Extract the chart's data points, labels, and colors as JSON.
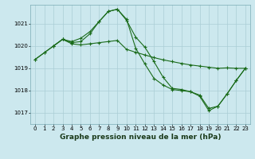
{
  "title": "Graphe pression niveau de la mer (hPa)",
  "title_fontsize": 6.5,
  "title_fontweight": "bold",
  "ylabel_ticks": [
    1017,
    1018,
    1019,
    1020,
    1021
  ],
  "xlim": [
    -0.5,
    23.5
  ],
  "ylim": [
    1016.5,
    1021.85
  ],
  "bg_color": "#cce8ee",
  "grid_color": "#aacdd5",
  "line_color": "#1a6b1a",
  "tick_fontsize": 5.0,
  "line1_x": [
    0,
    1,
    2,
    3,
    4,
    5,
    6,
    7,
    8,
    9,
    10,
    11,
    12,
    13,
    14,
    15,
    16,
    17,
    18,
    19,
    20,
    21,
    22,
    23
  ],
  "line1_y": [
    1019.4,
    1019.7,
    1020.0,
    1020.3,
    1020.1,
    1020.05,
    1020.1,
    1020.15,
    1020.2,
    1020.25,
    1019.85,
    1019.72,
    1019.6,
    1019.48,
    1019.38,
    1019.3,
    1019.22,
    1019.15,
    1019.1,
    1019.05,
    1019.0,
    1019.02,
    1019.0,
    1019.0
  ],
  "line2_x": [
    0,
    1,
    2,
    3,
    4,
    5,
    6,
    7,
    8,
    9,
    10,
    11,
    12,
    13,
    14,
    15,
    16,
    17,
    18,
    19,
    20,
    21,
    22,
    23
  ],
  "line2_y": [
    1019.4,
    1019.7,
    1020.0,
    1020.3,
    1020.15,
    1020.2,
    1020.55,
    1021.1,
    1021.55,
    1021.65,
    1021.2,
    1019.9,
    1019.2,
    1018.55,
    1018.25,
    1018.05,
    1018.0,
    1017.95,
    1017.8,
    1017.2,
    1017.3,
    1017.85,
    1018.45,
    1019.0
  ],
  "line3_x": [
    2,
    3,
    4,
    5,
    6,
    7,
    8,
    9,
    10,
    11,
    12,
    13,
    14,
    15,
    16,
    17,
    18,
    19,
    20,
    21,
    22,
    23
  ],
  "line3_y": [
    1020.0,
    1020.3,
    1020.2,
    1020.35,
    1020.65,
    1021.1,
    1021.55,
    1021.65,
    1021.15,
    1020.4,
    1019.95,
    1019.3,
    1018.6,
    1018.1,
    1018.05,
    1017.95,
    1017.75,
    1017.1,
    1017.3,
    1017.85,
    1018.45,
    1019.0
  ]
}
